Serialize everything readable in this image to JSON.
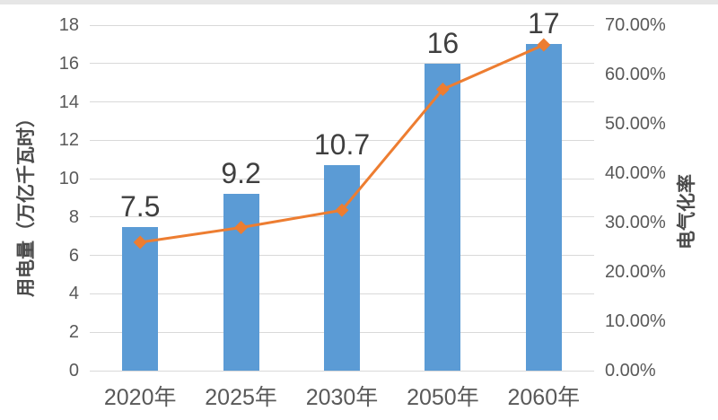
{
  "page": {
    "background": "#ffffff",
    "top_strip_color": "#e6e6e6"
  },
  "chart_data": {
    "type": "bar",
    "subtype": "combo-bar-line",
    "title": "",
    "categories": [
      "2020年",
      "2025年",
      "2030年",
      "2050年",
      "2060年"
    ],
    "series": [
      {
        "name": "用电量",
        "type": "bar",
        "axis": "left",
        "color": "#5B9BD5",
        "values": [
          7.5,
          9.2,
          10.7,
          16,
          17
        ],
        "data_labels": [
          "7.5",
          "9.2",
          "10.7",
          "16",
          "17"
        ]
      },
      {
        "name": "电气化率",
        "type": "line",
        "axis": "right",
        "color": "#ED7D31",
        "marker": "diamond",
        "values": [
          26,
          29,
          32.5,
          57,
          66
        ]
      }
    ],
    "left_axis": {
      "title": "用电量（万亿千瓦时）",
      "min": 0,
      "max": 18,
      "step": 2,
      "tick_labels": [
        "18",
        "16",
        "14",
        "12",
        "10",
        "8",
        "6",
        "4",
        "2",
        "0"
      ]
    },
    "right_axis": {
      "title": "电气化率",
      "min": 0,
      "max": 70,
      "step": 10,
      "tick_labels": [
        "70.00%",
        "60.00%",
        "50.00%",
        "40.00%",
        "30.00%",
        "20.00%",
        "10.00%",
        "0.00%"
      ]
    },
    "grid": true,
    "legend_position": "none",
    "grid_color": "#D9D9D9",
    "tick_color": "#595959",
    "data_label_color": "#3f3f3f"
  }
}
